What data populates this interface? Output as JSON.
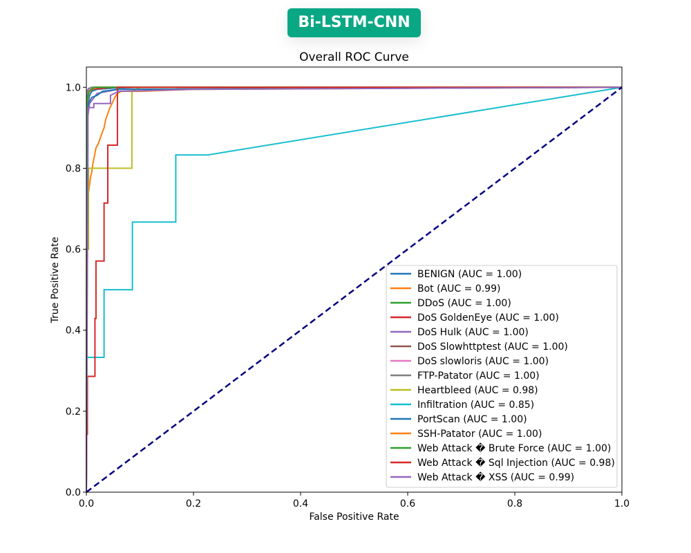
{
  "header": {
    "badge_label": "Bi-LSTM-CNN",
    "badge_color": "#0aa785"
  },
  "chart_data": {
    "type": "line",
    "title": "Overall ROC Curve",
    "xlabel": "False Positive Rate",
    "ylabel": "True Positive Rate",
    "xlim": [
      0.0,
      1.0
    ],
    "ylim": [
      0.0,
      1.05
    ],
    "xticks": [
      "0.0",
      "0.2",
      "0.4",
      "0.6",
      "0.8",
      "1.0"
    ],
    "yticks": [
      "0.0",
      "0.2",
      "0.4",
      "0.6",
      "0.8",
      "1.0"
    ],
    "xtick_values": [
      0.0,
      0.2,
      0.4,
      0.6,
      0.8,
      1.0
    ],
    "ytick_values": [
      0.0,
      0.2,
      0.4,
      0.6,
      0.8,
      1.0
    ],
    "grid": false,
    "legend_position": "lower-right",
    "diagonal": {
      "x": [
        0,
        1
      ],
      "y": [
        0,
        1
      ],
      "color": "#000080",
      "style": "dashed"
    },
    "series": [
      {
        "name": "BENIGN (AUC = 1.00)",
        "color": "#1f77b4",
        "x": [
          0,
          0.001,
          0.003,
          0.006,
          0.01,
          0.02,
          0.05,
          0.1,
          1.0
        ],
        "y": [
          0,
          0.9,
          0.96,
          0.98,
          0.99,
          0.995,
          0.998,
          1.0,
          1.0
        ]
      },
      {
        "name": "Bot (AUC = 0.99)",
        "color": "#ff7f0e",
        "x": [
          0,
          0.002,
          0.004,
          0.006,
          0.008,
          0.01,
          0.012,
          0.015,
          0.018,
          0.022,
          0.026,
          0.03,
          0.033,
          0.036,
          0.04,
          0.044,
          0.048,
          0.053,
          0.058,
          0.065,
          0.08,
          0.1,
          0.2,
          1.0
        ],
        "y": [
          0,
          0.7,
          0.74,
          0.76,
          0.78,
          0.79,
          0.81,
          0.83,
          0.85,
          0.86,
          0.875,
          0.89,
          0.9,
          0.92,
          0.935,
          0.95,
          0.96,
          0.975,
          0.985,
          0.99,
          0.99,
          0.99,
          0.995,
          1.0
        ]
      },
      {
        "name": "DDoS (AUC = 1.00)",
        "color": "#2ca02c",
        "x": [
          0,
          0.001,
          0.003,
          0.006,
          0.02,
          1.0
        ],
        "y": [
          0,
          0.95,
          0.99,
          0.998,
          1.0,
          1.0
        ]
      },
      {
        "name": "DoS GoldenEye (AUC = 1.00)",
        "color": "#d62728",
        "x": [
          0,
          0.002,
          0.005,
          0.01,
          0.05,
          1.0
        ],
        "y": [
          0,
          0.97,
          0.99,
          0.995,
          1.0,
          1.0
        ]
      },
      {
        "name": "DoS Hulk (AUC = 1.00)",
        "color": "#9467bd",
        "x": [
          0,
          0.002,
          0.006,
          0.02,
          0.06,
          1.0
        ],
        "y": [
          0,
          0.92,
          0.96,
          0.985,
          0.995,
          1.0
        ]
      },
      {
        "name": "DoS Slowhttptest (AUC = 1.00)",
        "color": "#8c564b",
        "x": [
          0,
          0.001,
          0.005,
          0.02,
          1.0
        ],
        "y": [
          0,
          0.97,
          0.99,
          1.0,
          1.0
        ]
      },
      {
        "name": "DoS slowloris (AUC = 1.00)",
        "color": "#e377c2",
        "x": [
          0,
          0.001,
          0.005,
          0.02,
          1.0
        ],
        "y": [
          0,
          0.98,
          0.995,
          1.0,
          1.0
        ]
      },
      {
        "name": "FTP-Patator (AUC = 1.00)",
        "color": "#7f7f7f",
        "x": [
          0,
          0.001,
          0.004,
          0.01,
          1.0
        ],
        "y": [
          0,
          0.99,
          0.997,
          1.0,
          1.0
        ]
      },
      {
        "name": "Heartbleed (AUC = 0.98)",
        "color": "#bcbd22",
        "x": [
          0,
          0.0,
          0.004,
          0.004,
          0.085,
          0.085,
          0.1,
          1.0
        ],
        "y": [
          0,
          0.6,
          0.6,
          0.8,
          0.8,
          0.99,
          1.0,
          1.0
        ]
      },
      {
        "name": "Infiltration (AUC = 0.85)",
        "color": "#17becf",
        "x": [
          0,
          0,
          0.033,
          0.033,
          0.086,
          0.086,
          0.167,
          0.167,
          0.227,
          1.0
        ],
        "y": [
          0,
          0.333,
          0.333,
          0.5,
          0.5,
          0.667,
          0.667,
          0.833,
          0.833,
          1.0
        ]
      },
      {
        "name": "PortScan (AUC = 1.00)",
        "color": "#1f77b4",
        "x": [
          0,
          0.001,
          0.004,
          0.01,
          0.02,
          0.03,
          0.06,
          1.0
        ],
        "y": [
          0,
          0.93,
          0.96,
          0.975,
          0.98,
          0.99,
          0.995,
          1.0
        ]
      },
      {
        "name": "SSH-Patator (AUC = 1.00)",
        "color": "#ff7f0e",
        "x": [
          0,
          0.001,
          0.004,
          0.01,
          0.02,
          1.0
        ],
        "y": [
          0,
          0.96,
          0.985,
          0.995,
          1.0,
          1.0
        ]
      },
      {
        "name": "Web Attack � Brute Force (AUC = 1.00)",
        "color": "#2ca02c",
        "x": [
          0,
          0.001,
          0.005,
          0.015,
          1.0
        ],
        "y": [
          0,
          0.97,
          0.99,
          1.0,
          1.0
        ]
      },
      {
        "name": "Web Attack � Sql Injection (AUC = 0.98)",
        "color": "#d62728",
        "x": [
          0,
          0,
          0.002,
          0.002,
          0.016,
          0.016,
          0.018,
          0.018,
          0.033,
          0.033,
          0.04,
          0.04,
          0.058,
          0.058,
          1.0
        ],
        "y": [
          0,
          0.143,
          0.143,
          0.286,
          0.286,
          0.429,
          0.429,
          0.571,
          0.571,
          0.714,
          0.714,
          0.857,
          0.857,
          1.0,
          1.0
        ]
      },
      {
        "name": "Web Attack � XSS (AUC = 0.99)",
        "color": "#9467bd",
        "x": [
          0,
          0.003,
          0.003,
          0.014,
          0.014,
          0.045,
          0.045,
          0.06,
          0.2,
          1.0
        ],
        "y": [
          0,
          0.85,
          0.95,
          0.95,
          0.96,
          0.96,
          0.98,
          0.99,
          0.995,
          1.0
        ]
      }
    ]
  }
}
